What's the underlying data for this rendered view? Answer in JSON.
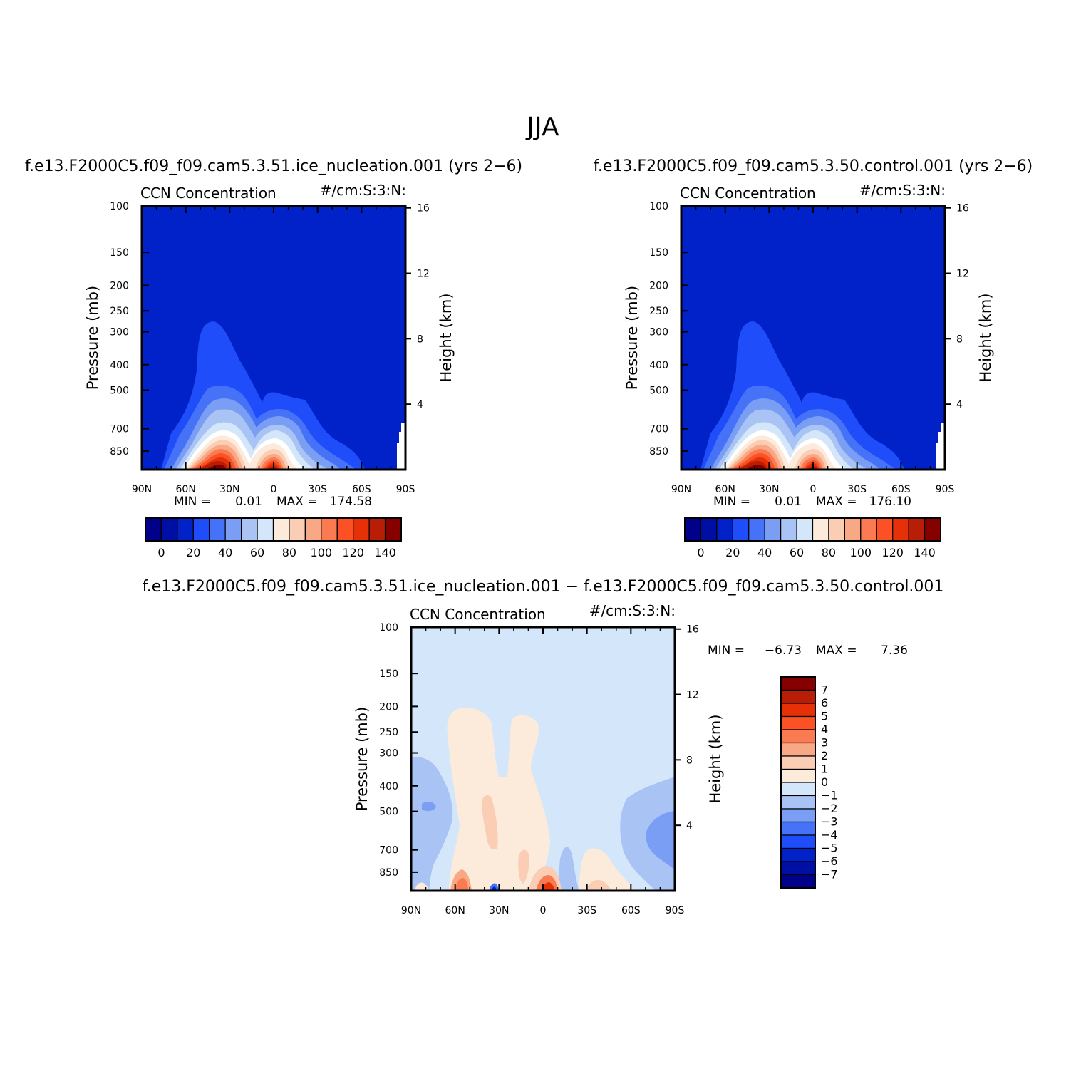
{
  "figure_title": "JJA",
  "colors": {
    "scale_16": [
      "#00008B",
      "#000FA3",
      "#0022C8",
      "#1F4DFA",
      "#4672F8",
      "#7A9EF4",
      "#A9C3F4",
      "#D4E6FA",
      "#FCEBDB",
      "#FBCDB5",
      "#F9A886",
      "#FA7A51",
      "#FB5124",
      "#E63108",
      "#B81E06",
      "#870000"
    ],
    "diff_scale": [
      "#870000",
      "#B81E06",
      "#E63108",
      "#FB5124",
      "#FA7A51",
      "#F9A886",
      "#FBCDB5",
      "#FCEBDB",
      "#D4E6FA",
      "#A9C3F4",
      "#7A9EF4",
      "#4672F8",
      "#1F4DFA",
      "#0022C8",
      "#000FA3",
      "#00008B"
    ]
  },
  "panels": [
    {
      "case_title": "f.e13.F2000C5.f09_f09.cam5.3.51.ice_nucleation.001 (yrs 2−6)",
      "var_left": "CCN Concentration",
      "var_right": "#/cm:S:3:N:",
      "stats": {
        "min_label": "MIN =",
        "min_value": "0.01",
        "max_label": "MAX =",
        "max_value": "174.58"
      }
    },
    {
      "case_title": "f.e13.F2000C5.f09_f09.cam5.3.50.control.001 (yrs 2−6)",
      "var_left": "CCN Concentration",
      "var_right": "#/cm:S:3:N:",
      "stats": {
        "min_label": "MIN =",
        "min_value": "0.01",
        "max_label": "MAX =",
        "max_value": "176.10"
      }
    },
    {
      "case_title": "f.e13.F2000C5.f09_f09.cam5.3.51.ice_nucleation.001 − f.e13.F2000C5.f09_f09.cam5.3.50.control.001",
      "var_left": "CCN Concentration",
      "var_right": "#/cm:S:3:N:",
      "stats": {
        "min_label": "MIN =",
        "min_value": "−6.73",
        "max_label": "MAX =",
        "max_value": "7.36"
      }
    }
  ],
  "axes": {
    "ylabel_left": "Pressure (mb)",
    "ylabel_right": "Height (km)",
    "x_ticks": [
      "90N",
      "60N",
      "30N",
      "0",
      "30S",
      "60S",
      "90S"
    ],
    "y_ticks_left": [
      "100",
      "150",
      "200",
      "250",
      "300",
      "400",
      "500",
      "700",
      "850"
    ],
    "y_ticks_right": [
      "16",
      "12",
      "8",
      "4"
    ]
  },
  "colorbars": {
    "main_labels": [
      "0",
      "20",
      "40",
      "60",
      "80",
      "100",
      "120",
      "140"
    ],
    "diff_labels": [
      "7",
      "6",
      "5",
      "4",
      "3",
      "2",
      "1",
      "0",
      "−1",
      "−2",
      "−3",
      "−4",
      "−5",
      "−6",
      "−7"
    ]
  },
  "chart_data": [
    {
      "type": "heatmap",
      "title": "CCN Concentration",
      "units": "#/cm:S:3:N:",
      "xlabel": "",
      "ylabel": "Pressure (mb)",
      "ylabel_right": "Height (km)",
      "x": [
        "90N",
        "60N",
        "30N",
        "0",
        "30S",
        "60S",
        "90S"
      ],
      "y": [
        100,
        150,
        200,
        250,
        300,
        400,
        500,
        700,
        850
      ],
      "levels": [
        0,
        10,
        20,
        30,
        40,
        50,
        60,
        70,
        80,
        90,
        100,
        110,
        120,
        130,
        140
      ],
      "min": 0.01,
      "max": 174.58,
      "maxima": [
        {
          "lat": "40N",
          "pressure": 900
        },
        {
          "lat": "10S",
          "pressure": 880
        }
      ]
    },
    {
      "type": "heatmap",
      "title": "CCN Concentration",
      "units": "#/cm:S:3:N:",
      "xlabel": "",
      "ylabel": "Pressure (mb)",
      "ylabel_right": "Height (km)",
      "x": [
        "90N",
        "60N",
        "30N",
        "0",
        "30S",
        "60S",
        "90S"
      ],
      "y": [
        100,
        150,
        200,
        250,
        300,
        400,
        500,
        700,
        850
      ],
      "levels": [
        0,
        10,
        20,
        30,
        40,
        50,
        60,
        70,
        80,
        90,
        100,
        110,
        120,
        130,
        140
      ],
      "min": 0.01,
      "max": 176.1,
      "maxima": [
        {
          "lat": "40N",
          "pressure": 900
        },
        {
          "lat": "10S",
          "pressure": 880
        }
      ]
    },
    {
      "type": "heatmap",
      "title": "CCN Concentration",
      "units": "#/cm:S:3:N:",
      "xlabel": "",
      "ylabel": "Pressure (mb)",
      "ylabel_right": "Height (km)",
      "x": [
        "90N",
        "60N",
        "30N",
        "0",
        "30S",
        "60S",
        "90S"
      ],
      "y": [
        100,
        150,
        200,
        250,
        300,
        400,
        500,
        700,
        850
      ],
      "levels": [
        -7,
        -6,
        -5,
        -4,
        -3,
        -2,
        -1,
        0,
        1,
        2,
        3,
        4,
        5,
        6,
        7
      ],
      "min": -6.73,
      "max": 7.36
    }
  ]
}
